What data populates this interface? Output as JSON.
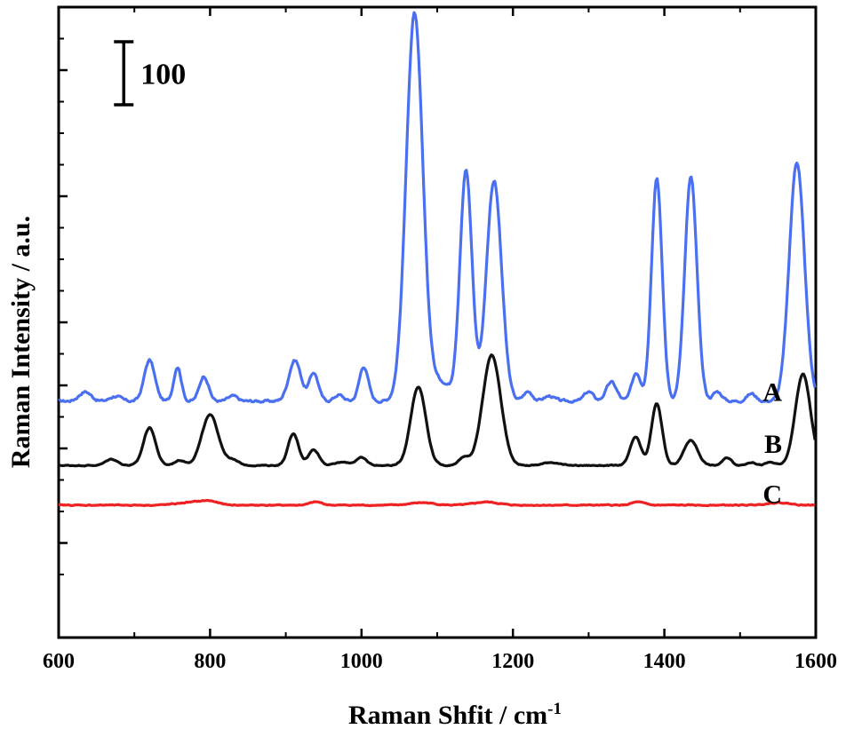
{
  "chart_data": {
    "type": "line",
    "xlabel": "Raman Shfit / cm",
    "xlabel_superscript": "-1",
    "ylabel": "Raman Intensity / a.u.",
    "xlim": [
      600,
      1600
    ],
    "x_ticks": [
      600,
      800,
      1000,
      1200,
      1400,
      1600
    ],
    "ylim": [
      0,
      1000
    ],
    "y_major_ticks": [
      150,
      300,
      400,
      500,
      700,
      900
    ],
    "y_minor_ticks": [
      100,
      200,
      250,
      350,
      450,
      550,
      600,
      650,
      750,
      800,
      850,
      950
    ],
    "y_tick_labels": false,
    "grid": false,
    "scale_bar": {
      "label": "100",
      "y_from": 845,
      "y_to": 945
    },
    "series": [
      {
        "name": "A",
        "color": "#4a6ff0",
        "label_at": [
          1600,
          392
        ],
        "baseline": 375,
        "noise": 8,
        "peaks": [
          [
            635,
            15,
            8
          ],
          [
            675,
            8,
            7
          ],
          [
            720,
            65,
            7
          ],
          [
            757,
            55,
            5
          ],
          [
            792,
            40,
            6
          ],
          [
            830,
            8,
            6
          ],
          [
            912,
            65,
            8
          ],
          [
            937,
            45,
            6
          ],
          [
            970,
            10,
            6
          ],
          [
            1003,
            55,
            6
          ],
          [
            1070,
            615,
            11
          ],
          [
            1105,
            30,
            12
          ],
          [
            1138,
            365,
            8
          ],
          [
            1175,
            350,
            10
          ],
          [
            1220,
            15,
            6
          ],
          [
            1248,
            8,
            7
          ],
          [
            1300,
            15,
            6
          ],
          [
            1330,
            30,
            7
          ],
          [
            1363,
            45,
            6
          ],
          [
            1390,
            355,
            7
          ],
          [
            1435,
            355,
            8
          ],
          [
            1470,
            15,
            6
          ],
          [
            1515,
            12,
            6
          ],
          [
            1575,
            380,
            10
          ]
        ]
      },
      {
        "name": "B",
        "color": "#111111",
        "label_at": [
          1600,
          310
        ],
        "baseline": 273,
        "noise": 3,
        "peaks": [
          [
            670,
            10,
            8
          ],
          [
            720,
            60,
            8
          ],
          [
            760,
            8,
            7
          ],
          [
            800,
            80,
            11
          ],
          [
            830,
            8,
            8
          ],
          [
            910,
            50,
            7
          ],
          [
            937,
            25,
            7
          ],
          [
            975,
            5,
            10
          ],
          [
            1000,
            12,
            7
          ],
          [
            1075,
            125,
            10
          ],
          [
            1135,
            12,
            7
          ],
          [
            1172,
            175,
            12
          ],
          [
            1250,
            5,
            10
          ],
          [
            1362,
            45,
            7
          ],
          [
            1390,
            98,
            7
          ],
          [
            1435,
            40,
            9
          ],
          [
            1483,
            12,
            6
          ],
          [
            1515,
            5,
            6
          ],
          [
            1540,
            5,
            6
          ],
          [
            1583,
            145,
            10
          ]
        ]
      },
      {
        "name": "C",
        "color": "#ee2222",
        "label_at": [
          1600,
          230
        ],
        "baseline": 210,
        "noise": 3,
        "peaks": [
          [
            780,
            5,
            20
          ],
          [
            800,
            4,
            10
          ],
          [
            940,
            5,
            8
          ],
          [
            1080,
            4,
            15
          ],
          [
            1165,
            5,
            15
          ],
          [
            1365,
            5,
            8
          ],
          [
            1550,
            4,
            15
          ]
        ]
      }
    ]
  }
}
